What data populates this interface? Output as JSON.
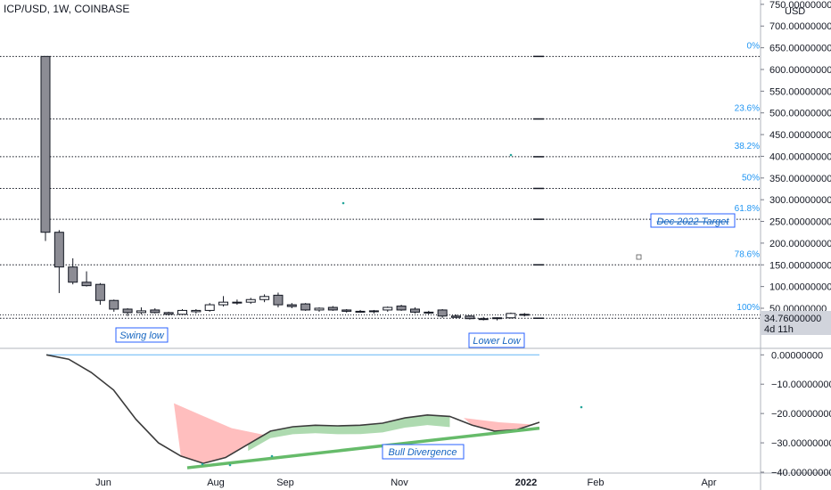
{
  "header": {
    "symbol_title": "ICP/USD, 1W, COINBASE"
  },
  "price_axis": {
    "currency": "USD",
    "ticks": [
      "750.00000000",
      "700.00000000",
      "650.00000000",
      "600.00000000",
      "550.00000000",
      "500.00000000",
      "450.00000000",
      "400.00000000",
      "350.00000000",
      "300.00000000",
      "250.00000000",
      "200.00000000",
      "150.00000000",
      "100.00000000",
      "50.00000000",
      "0.00000000"
    ],
    "current_price": "34.76000000",
    "countdown": "4d 11h",
    "current_price_color": "#131722"
  },
  "osc_axis": {
    "ticks": [
      "0.00000000",
      "−10.00000000",
      "−20.00000000",
      "−30.00000000",
      "−40.00000000"
    ]
  },
  "time_axis": {
    "labels": [
      "Jun",
      "Aug",
      "Sep",
      "Nov",
      "2022",
      "Feb",
      "Apr"
    ]
  },
  "annotations": {
    "swing_low": "Swing low",
    "lower_low": "Lower Low",
    "bull_divergence": "Bull Divergence",
    "dec_target": "Dec 2022 Target"
  },
  "colors": {
    "fib_text": "#2196f3",
    "annotation_text": "#1565c0",
    "candle_bear": "#8c8c94",
    "candle_bull": "#ffffff",
    "divergence_line": "#66bb6a",
    "fill_bull": "#a5d6a7",
    "fill_bear": "#ffb3b3"
  },
  "chart_data": [
    {
      "type": "candlestick",
      "title": "ICP/USD, 1W, COINBASE",
      "ylabel": "USD",
      "ylim": [
        -28,
        760
      ],
      "x_labels": [
        "Jun",
        "Aug",
        "Sep",
        "Nov",
        "2022",
        "Feb",
        "Apr"
      ],
      "candles": [
        {
          "o": 630,
          "h": 630,
          "l": 205,
          "c": 225
        },
        {
          "o": 225,
          "h": 230,
          "l": 85,
          "c": 145
        },
        {
          "o": 145,
          "h": 165,
          "l": 105,
          "c": 110
        },
        {
          "o": 110,
          "h": 135,
          "l": 100,
          "c": 102
        },
        {
          "o": 105,
          "h": 108,
          "l": 58,
          "c": 68
        },
        {
          "o": 68,
          "h": 70,
          "l": 42,
          "c": 48
        },
        {
          "o": 48,
          "h": 50,
          "l": 32,
          "c": 40
        },
        {
          "o": 40,
          "h": 52,
          "l": 36,
          "c": 44
        },
        {
          "o": 46,
          "h": 50,
          "l": 38,
          "c": 40
        },
        {
          "o": 40,
          "h": 42,
          "l": 33,
          "c": 36
        },
        {
          "o": 36,
          "h": 48,
          "l": 34,
          "c": 45
        },
        {
          "o": 42,
          "h": 48,
          "l": 38,
          "c": 45
        },
        {
          "o": 45,
          "h": 62,
          "l": 42,
          "c": 58
        },
        {
          "o": 58,
          "h": 78,
          "l": 54,
          "c": 64
        },
        {
          "o": 62,
          "h": 70,
          "l": 58,
          "c": 64
        },
        {
          "o": 64,
          "h": 74,
          "l": 60,
          "c": 70
        },
        {
          "o": 70,
          "h": 82,
          "l": 64,
          "c": 77
        },
        {
          "o": 80,
          "h": 86,
          "l": 52,
          "c": 58
        },
        {
          "o": 58,
          "h": 62,
          "l": 50,
          "c": 54
        },
        {
          "o": 60,
          "h": 62,
          "l": 44,
          "c": 46
        },
        {
          "o": 46,
          "h": 52,
          "l": 42,
          "c": 50
        },
        {
          "o": 52,
          "h": 55,
          "l": 44,
          "c": 46
        },
        {
          "o": 46,
          "h": 48,
          "l": 40,
          "c": 43
        },
        {
          "o": 43,
          "h": 46,
          "l": 40,
          "c": 42
        },
        {
          "o": 42,
          "h": 46,
          "l": 38,
          "c": 44
        },
        {
          "o": 46,
          "h": 54,
          "l": 42,
          "c": 52
        },
        {
          "o": 55,
          "h": 58,
          "l": 44,
          "c": 46
        },
        {
          "o": 48,
          "h": 52,
          "l": 38,
          "c": 41
        },
        {
          "o": 41,
          "h": 44,
          "l": 36,
          "c": 40
        },
        {
          "o": 46,
          "h": 48,
          "l": 28,
          "c": 32
        },
        {
          "o": 32,
          "h": 35,
          "l": 27,
          "c": 29
        },
        {
          "o": 32,
          "h": 34,
          "l": 24,
          "c": 26
        },
        {
          "o": 26,
          "h": 30,
          "l": 22,
          "c": 25
        },
        {
          "o": 26,
          "h": 29,
          "l": 22,
          "c": 28
        },
        {
          "o": 28,
          "h": 40,
          "l": 26,
          "c": 38
        },
        {
          "o": 36,
          "h": 39,
          "l": 31,
          "c": 35
        }
      ],
      "fib_levels": [
        {
          "label": "0%",
          "price": 630
        },
        {
          "label": "23.6%",
          "price": 486
        },
        {
          "label": "38.2%",
          "price": 399
        },
        {
          "label": "50%",
          "price": 326
        },
        {
          "label": "61.8%",
          "price": 255
        },
        {
          "label": "78.6%",
          "price": 150
        },
        {
          "label": "100%",
          "price": 27
        }
      ],
      "reference_lines": [
        34.76
      ]
    },
    {
      "type": "line",
      "name": "Oscillator",
      "ylim": [
        -40,
        1
      ],
      "values": [
        0,
        -1.5,
        -6,
        -12,
        -22,
        -30,
        -34.5,
        -37,
        -35,
        -30.5,
        -26,
        -24.5,
        -24,
        -24.2,
        -24,
        -23.3,
        -21.5,
        -20.5,
        -21,
        -24,
        -26,
        -25.5,
        -23
      ],
      "reference_value": 0,
      "divergence_line": [
        -38.5,
        -25
      ]
    }
  ]
}
